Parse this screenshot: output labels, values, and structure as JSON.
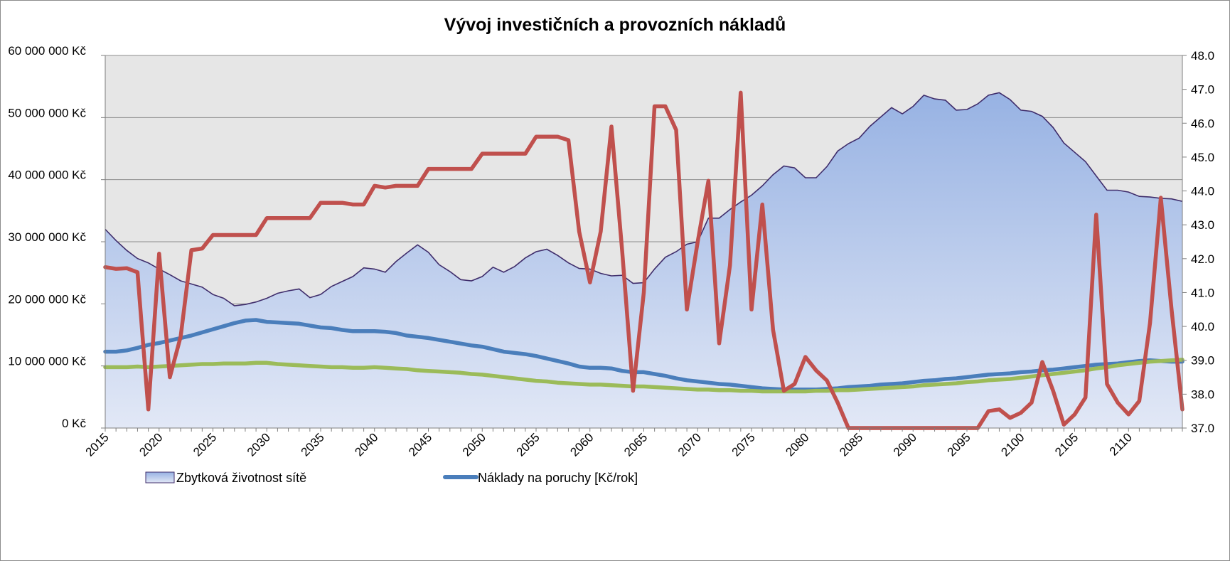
{
  "chart_data": {
    "type": "area",
    "title": "Vývoj investičních a provozních nákladů",
    "x": [
      2015,
      2016,
      2017,
      2018,
      2019,
      2020,
      2021,
      2022,
      2023,
      2024,
      2025,
      2026,
      2027,
      2028,
      2029,
      2030,
      2031,
      2032,
      2033,
      2034,
      2035,
      2036,
      2037,
      2038,
      2039,
      2040,
      2041,
      2042,
      2043,
      2044,
      2045,
      2046,
      2047,
      2048,
      2049,
      2050,
      2051,
      2052,
      2053,
      2054,
      2055,
      2056,
      2057,
      2058,
      2059,
      2060,
      2061,
      2062,
      2063,
      2064,
      2065,
      2066,
      2067,
      2068,
      2069,
      2070,
      2071,
      2072,
      2073,
      2074,
      2075,
      2076,
      2077,
      2078,
      2079,
      2080,
      2081,
      2082,
      2083,
      2084,
      2085,
      2086,
      2087,
      2088,
      2089,
      2090,
      2091,
      2092,
      2093,
      2094,
      2095,
      2096,
      2097,
      2098,
      2099,
      2100,
      2101,
      2102,
      2103,
      2104,
      2105,
      2106,
      2107,
      2108,
      2109,
      2110,
      2111,
      2112,
      2113,
      2114,
      2115
    ],
    "xlim": [
      2015,
      2115
    ],
    "x_ticks": [
      "2015",
      "2020",
      "2025",
      "2030",
      "2035",
      "2040",
      "2045",
      "2050",
      "2055",
      "2060",
      "2065",
      "2070",
      "2075",
      "2080",
      "2085",
      "2090",
      "2095",
      "2100",
      "2105",
      "2110"
    ],
    "y_left": {
      "ylim": [
        0,
        60000000
      ],
      "ticks": [
        "0 Kč",
        "10 000 000 Kč",
        "20 000 000 Kč",
        "30 000 000 Kč",
        "40 000 000 Kč",
        "50 000 000 Kč",
        "60 000 000 Kč"
      ]
    },
    "y_right": {
      "ylim": [
        37,
        48
      ],
      "ticks": [
        "37.0",
        "38.0",
        "39.0",
        "40.0",
        "41.0",
        "42.0",
        "43.0",
        "44.0",
        "45.0",
        "46.0",
        "47.0",
        "48.0"
      ]
    },
    "grid": true,
    "legend_position": "bottom-left",
    "series": [
      {
        "name": "Zbytková životnost sítě",
        "kind": "area",
        "axis": "left",
        "color": "#8ea9db",
        "edge_color": "#3f2d6b",
        "values": [
          32000000,
          30200000,
          28600000,
          27300000,
          26600000,
          25600000,
          24700000,
          23700000,
          23200000,
          22700000,
          21500000,
          20900000,
          19700000,
          19900000,
          20300000,
          20900000,
          21700000,
          22100000,
          22400000,
          21000000,
          21500000,
          22800000,
          23600000,
          24400000,
          25800000,
          25600000,
          25100000,
          26800000,
          28200000,
          29500000,
          28300000,
          26300000,
          25200000,
          23900000,
          23700000,
          24400000,
          25900000,
          25100000,
          26000000,
          27400000,
          28400000,
          28800000,
          27800000,
          26600000,
          25700000,
          25600000,
          24900000,
          24500000,
          24600000,
          23300000,
          23400000,
          25600000,
          27500000,
          28400000,
          29600000,
          30000000,
          33800000,
          33800000,
          35200000,
          36400000,
          37500000,
          39000000,
          40800000,
          42200000,
          41900000,
          40300000,
          40300000,
          42100000,
          44600000,
          45800000,
          46700000,
          48600000,
          50100000,
          51600000,
          50600000,
          51800000,
          53600000,
          53000000,
          52800000,
          51200000,
          51300000,
          52200000,
          53600000,
          54000000,
          52900000,
          51200000,
          51000000,
          50200000,
          48400000,
          45900000,
          44400000,
          42900000,
          40600000,
          38300000,
          38300000,
          38000000,
          37300000,
          37200000,
          37000000,
          36900000,
          36500000
        ]
      },
      {
        "name": "Náklady na poruchy [Kč/rok]",
        "kind": "line",
        "axis": "left",
        "color": "#4a7ebb",
        "values": [
          12300000,
          12300000,
          12500000,
          12900000,
          13400000,
          13700000,
          14100000,
          14500000,
          14900000,
          15400000,
          15900000,
          16400000,
          16900000,
          17300000,
          17400000,
          17100000,
          17000000,
          16900000,
          16800000,
          16500000,
          16200000,
          16100000,
          15800000,
          15600000,
          15600000,
          15600000,
          15500000,
          15300000,
          14900000,
          14700000,
          14500000,
          14200000,
          13900000,
          13600000,
          13300000,
          13100000,
          12700000,
          12300000,
          12100000,
          11900000,
          11600000,
          11200000,
          10800000,
          10400000,
          9900000,
          9700000,
          9700000,
          9600000,
          9200000,
          9000000,
          9000000,
          8700000,
          8400000,
          8000000,
          7700000,
          7500000,
          7300000,
          7100000,
          7000000,
          6800000,
          6600000,
          6400000,
          6300000,
          6200000,
          6200000,
          6200000,
          6200000,
          6300000,
          6400000,
          6600000,
          6700000,
          6800000,
          7000000,
          7100000,
          7200000,
          7400000,
          7600000,
          7700000,
          7900000,
          8000000,
          8200000,
          8400000,
          8600000,
          8700000,
          8800000,
          9000000,
          9100000,
          9300000,
          9400000,
          9600000,
          9800000,
          10000000,
          10200000,
          10300000,
          10400000,
          10600000,
          10800000,
          10900000,
          10800000,
          10700000,
          10700000
        ]
      },
      {
        "name": "",
        "kind": "line",
        "axis": "left",
        "color": "#9bbb59",
        "values": [
          9800000,
          9800000,
          9800000,
          9900000,
          9800000,
          9900000,
          10000000,
          10100000,
          10200000,
          10300000,
          10300000,
          10400000,
          10400000,
          10400000,
          10500000,
          10500000,
          10300000,
          10200000,
          10100000,
          10000000,
          9900000,
          9800000,
          9800000,
          9700000,
          9700000,
          9800000,
          9700000,
          9600000,
          9500000,
          9300000,
          9200000,
          9100000,
          9000000,
          8900000,
          8700000,
          8600000,
          8400000,
          8200000,
          8000000,
          7800000,
          7600000,
          7500000,
          7300000,
          7200000,
          7100000,
          7000000,
          7000000,
          6900000,
          6800000,
          6700000,
          6700000,
          6600000,
          6500000,
          6400000,
          6300000,
          6200000,
          6200000,
          6100000,
          6100000,
          6000000,
          6000000,
          5900000,
          5900000,
          5900000,
          5900000,
          5900000,
          6000000,
          6000000,
          6100000,
          6100000,
          6200000,
          6300000,
          6400000,
          6500000,
          6600000,
          6700000,
          6900000,
          7000000,
          7100000,
          7200000,
          7400000,
          7500000,
          7700000,
          7800000,
          7900000,
          8100000,
          8300000,
          8500000,
          8700000,
          8900000,
          9100000,
          9300000,
          9600000,
          9800000,
          10100000,
          10300000,
          10500000,
          10700000,
          10800000,
          10900000,
          11000000
        ]
      },
      {
        "name": "",
        "kind": "line",
        "axis": "right",
        "color": "#c0504d",
        "values": [
          41.75,
          41.7,
          41.72,
          41.6,
          37.55,
          42.15,
          38.5,
          39.7,
          42.25,
          42.3,
          42.7,
          42.7,
          42.7,
          42.7,
          42.7,
          43.2,
          43.2,
          43.2,
          43.2,
          43.2,
          43.65,
          43.65,
          43.65,
          43.6,
          43.6,
          44.15,
          44.1,
          44.15,
          44.15,
          44.15,
          44.65,
          44.65,
          44.65,
          44.65,
          44.65,
          45.1,
          45.1,
          45.1,
          45.1,
          45.1,
          45.6,
          45.6,
          45.6,
          45.5,
          42.8,
          41.3,
          42.8,
          45.9,
          42.2,
          38.1,
          41.0,
          46.5,
          46.5,
          45.8,
          40.5,
          42.5,
          44.3,
          39.5,
          41.8,
          46.9,
          40.5,
          43.6,
          39.9,
          38.1,
          38.3,
          39.1,
          38.7,
          38.4,
          37.75,
          37.0,
          37.0,
          37.0,
          37.0,
          37.0,
          37.0,
          37.0,
          37.0,
          37.0,
          37.0,
          37.0,
          37.0,
          37.0,
          37.5,
          37.55,
          37.3,
          37.45,
          37.75,
          38.95,
          38.1,
          37.1,
          37.4,
          37.9,
          43.3,
          38.3,
          37.75,
          37.4,
          37.8,
          40.1,
          43.8,
          40.5,
          37.55
        ]
      }
    ]
  }
}
